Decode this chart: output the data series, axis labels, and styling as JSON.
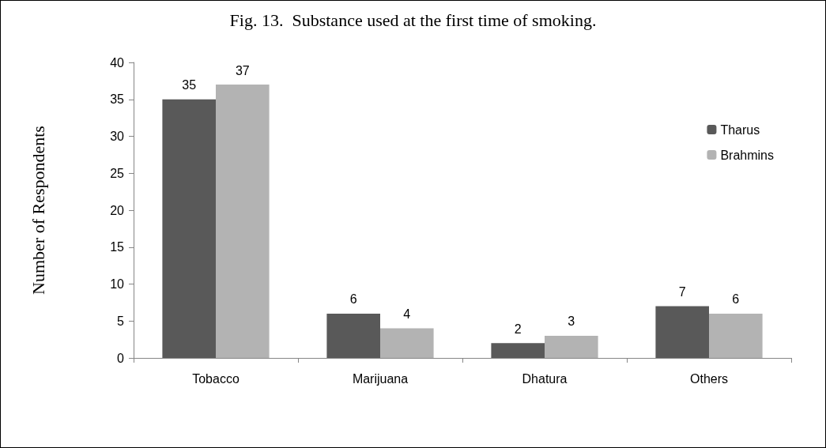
{
  "chart_data": {
    "type": "bar",
    "title": "Fig. 13.  Substance used at the first time of smoking.",
    "ylabel": "Number of Respondents",
    "categories": [
      "Tobacco",
      "Marijuana",
      "Dhatura",
      "Others"
    ],
    "series": [
      {
        "name": "Tharus",
        "color": "#595959",
        "values": [
          35,
          6,
          2,
          7
        ]
      },
      {
        "name": "Brahmins",
        "color": "#b3b3b3",
        "values": [
          37,
          4,
          3,
          6
        ]
      }
    ],
    "ylim": [
      0,
      40
    ],
    "yticks": [
      0,
      5,
      10,
      15,
      20,
      25,
      30,
      35,
      40
    ],
    "grid": false,
    "legend": "top right",
    "data_labels": true
  }
}
